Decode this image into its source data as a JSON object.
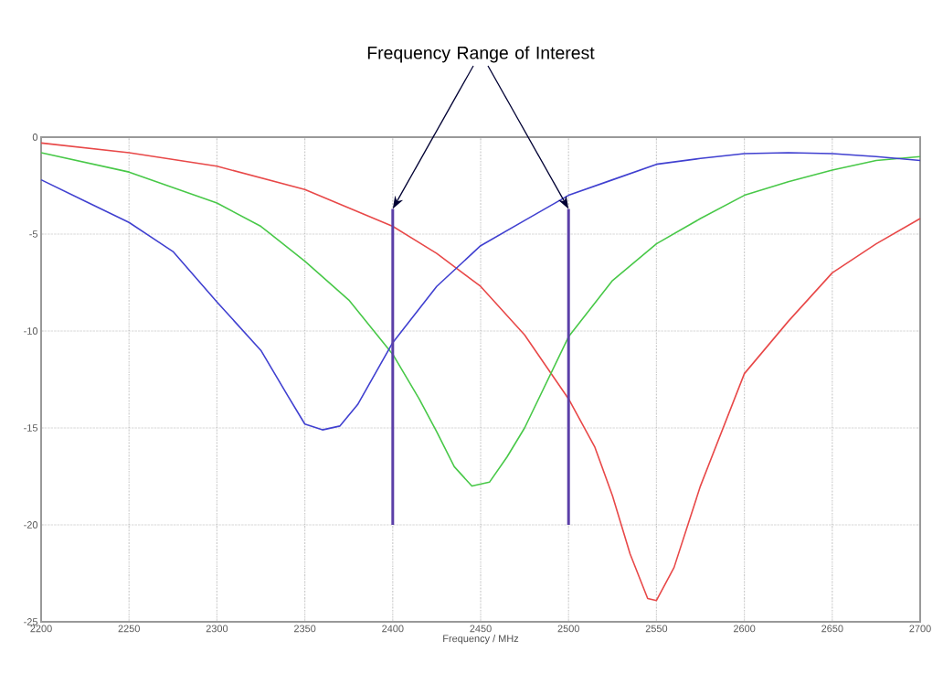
{
  "chart_data": {
    "type": "line",
    "xlabel": "Frequency / MHz",
    "annotations": [
      {
        "text": "Frequency Range of Interest",
        "x": 2400,
        "y": -3.7
      }
    ],
    "grid": true,
    "line_style": "solid",
    "marker": "none",
    "xlim": [
      2200,
      2700
    ],
    "xticks": [
      2200,
      2250,
      2300,
      2350,
      2400,
      2450,
      2500,
      2550,
      2600,
      2650,
      2700
    ],
    "ylim": [
      -25,
      0
    ],
    "yticks": [
      -25,
      -20,
      -15,
      -10,
      -5,
      0
    ],
    "series": [
      {
        "color": "#e84848",
        "x": [
          2200,
          2250,
          2300,
          2350,
          2400,
          2425,
          2450,
          2475,
          2500,
          2515,
          2525,
          2535,
          2545,
          2550,
          2560,
          2575,
          2600,
          2625,
          2650,
          2675,
          2700
        ],
        "values": [
          -0.3,
          -0.8,
          -1.5,
          -2.7,
          -4.6,
          -6.0,
          -7.7,
          -10.2,
          -13.5,
          -16.0,
          -18.5,
          -21.5,
          -23.8,
          -23.9,
          -22.2,
          -18.0,
          -12.2,
          -9.5,
          -7.0,
          -5.5,
          -4.2
        ]
      },
      {
        "color": "#48c848",
        "x": [
          2200,
          2250,
          2300,
          2325,
          2350,
          2375,
          2400,
          2415,
          2425,
          2435,
          2445,
          2455,
          2465,
          2475,
          2500,
          2525,
          2550,
          2575,
          2600,
          2625,
          2650,
          2675,
          2700
        ],
        "values": [
          -0.8,
          -1.8,
          -3.4,
          -4.6,
          -6.4,
          -8.4,
          -11.2,
          -13.5,
          -15.2,
          -17.0,
          -18.0,
          -17.8,
          -16.5,
          -15.0,
          -10.3,
          -7.4,
          -5.5,
          -4.2,
          -3.0,
          -2.3,
          -1.7,
          -1.2,
          -1.0
        ]
      },
      {
        "color": "#4040d0",
        "x": [
          2200,
          2225,
          2250,
          2275,
          2300,
          2325,
          2340,
          2350,
          2360,
          2370,
          2380,
          2400,
          2425,
          2450,
          2475,
          2500,
          2525,
          2550,
          2575,
          2600,
          2625,
          2650,
          2675,
          2700
        ],
        "values": [
          -2.2,
          -3.3,
          -4.4,
          -5.9,
          -8.5,
          -11.0,
          -13.3,
          -14.8,
          -15.1,
          -14.9,
          -13.8,
          -10.6,
          -7.7,
          -5.6,
          -4.3,
          -3.0,
          -2.2,
          -1.4,
          -1.1,
          -0.85,
          -0.8,
          -0.85,
          -1.0,
          -1.2
        ]
      },
      {
        "color": "#5b3fa8",
        "x": [
          2400,
          2400
        ],
        "values": [
          -20,
          -3.7
        ]
      },
      {
        "color": "#5b3fa8",
        "x": [
          2500,
          2500
        ],
        "values": [
          -20,
          -3.7
        ]
      }
    ]
  }
}
